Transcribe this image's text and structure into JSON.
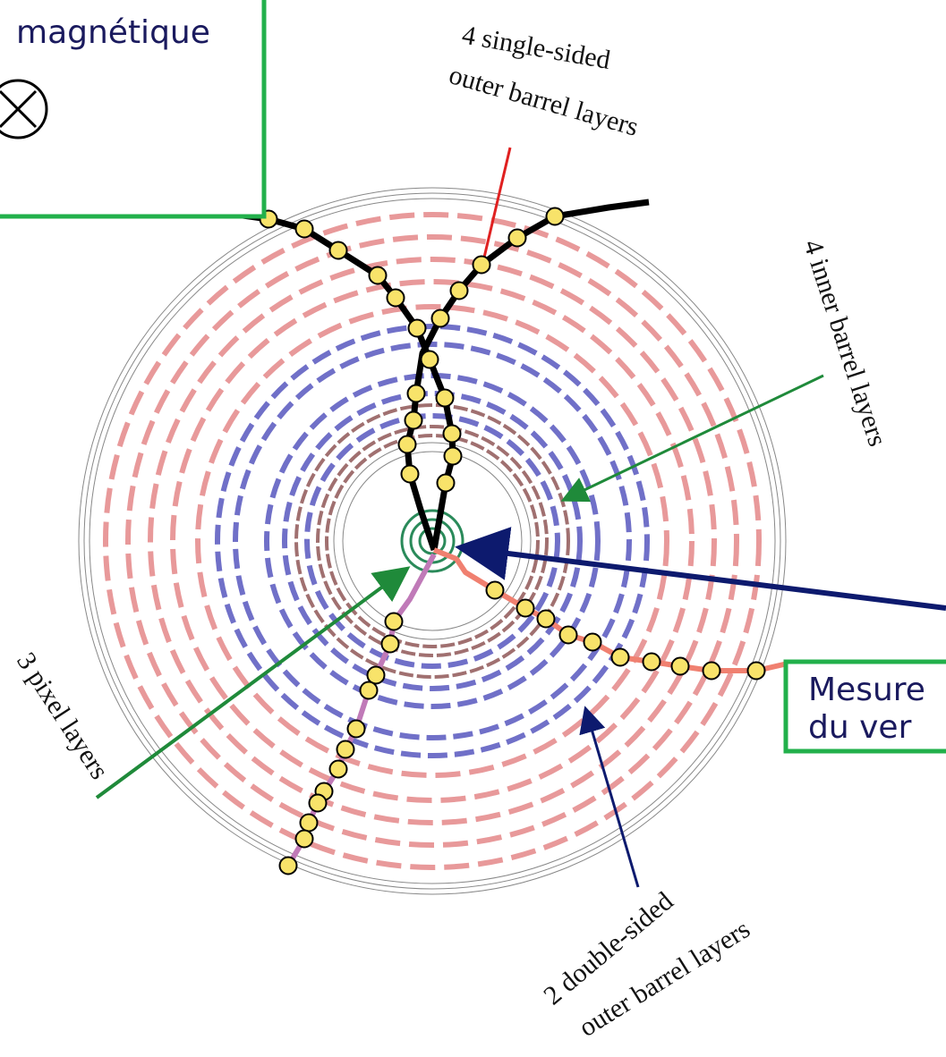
{
  "field_box": {
    "text": "magnétique"
  },
  "labels": {
    "single_sided": {
      "lines": [
        "4 single-sided",
        "outer barrel layers"
      ]
    },
    "inner_barrel": {
      "lines": [
        "4 inner barrel layers"
      ]
    },
    "pixel": {
      "lines": [
        "3 pixel layers"
      ]
    },
    "double_sided": {
      "lines": [
        "2 double-sided",
        "outer barrel layers"
      ]
    }
  },
  "vertex_box": {
    "lines": [
      "Mesure",
      "du ver"
    ]
  }
}
